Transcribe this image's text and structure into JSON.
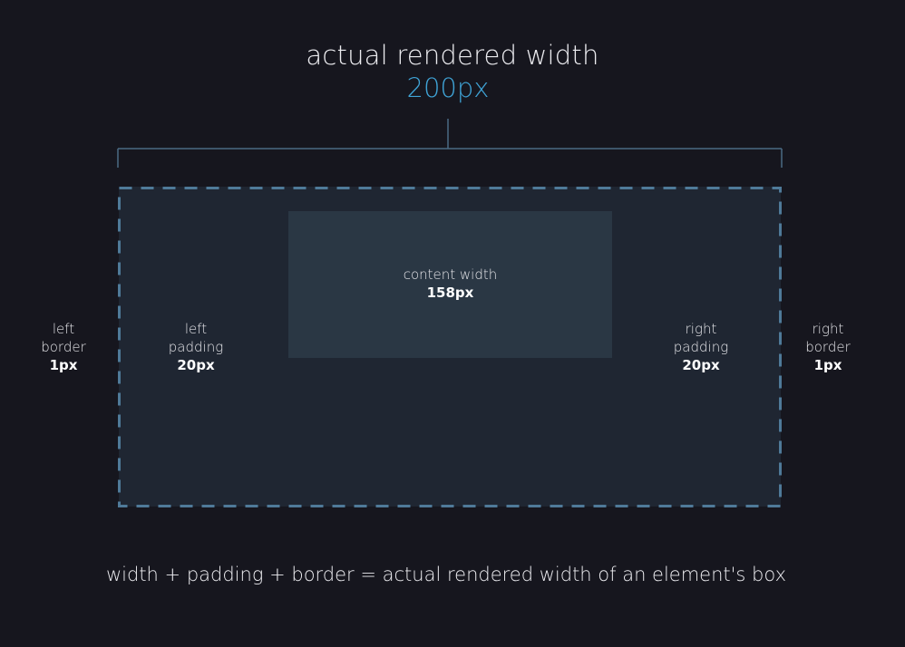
{
  "title": "actual rendered width",
  "title_value": "200px",
  "content": {
    "label": "content width",
    "value": "158px"
  },
  "left_padding": {
    "line1": "left",
    "line2": "padding",
    "value": "20px"
  },
  "right_padding": {
    "line1": "right",
    "line2": "padding",
    "value": "20px"
  },
  "left_border": {
    "line1": "left",
    "line2": "border",
    "value": "1px"
  },
  "right_border": {
    "line1": "right",
    "line2": "border",
    "value": "1px"
  },
  "footer": "width + padding + border = actual rendered width of an element's box",
  "colors": {
    "background": "#16161e",
    "accent": "#3fa3d6",
    "border_dash": "#4f7a99",
    "padding_area": "#1f2632",
    "content_area": "#2a3744"
  }
}
